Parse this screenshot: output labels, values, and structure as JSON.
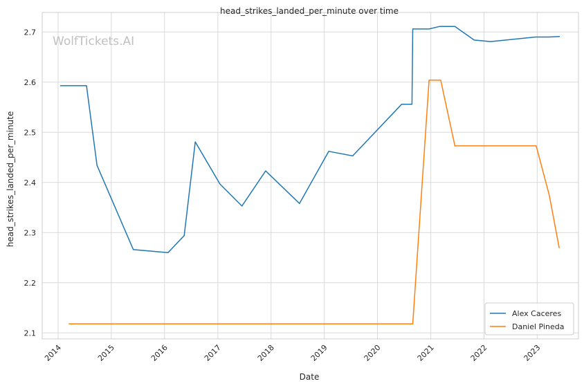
{
  "watermark": "WolfTickets.AI",
  "chart_data": {
    "type": "line",
    "title": "head_strikes_landed_per_minute over time",
    "xlabel": "Date",
    "ylabel": "head_strikes_landed_per_minute",
    "xlim": [
      "2013-09-14",
      "2023-10-11"
    ],
    "ylim": [
      2.088,
      2.739
    ],
    "x_ticks": [
      "2014-01-01",
      "2015-01-01",
      "2016-01-01",
      "2017-01-01",
      "2018-01-01",
      "2019-01-01",
      "2020-01-01",
      "2021-01-01",
      "2022-01-01",
      "2023-01-01"
    ],
    "x_tick_labels": [
      "2014",
      "2015",
      "2016",
      "2017",
      "2018",
      "2019",
      "2020",
      "2021",
      "2022",
      "2023"
    ],
    "y_ticks": [
      2.1,
      2.2,
      2.3,
      2.4,
      2.5,
      2.6,
      2.7
    ],
    "y_tick_labels": [
      "2.1",
      "2.2",
      "2.3",
      "2.4",
      "2.5",
      "2.6",
      "2.7"
    ],
    "grid": true,
    "legend_position": "lower-right",
    "series": [
      {
        "name": "Alex Caceres",
        "color": "#1f77b4",
        "points": [
          [
            "2014-01-15",
            2.593
          ],
          [
            "2014-07-15",
            2.593
          ],
          [
            "2014-09-25",
            2.434
          ],
          [
            "2015-06-01",
            2.266
          ],
          [
            "2016-01-25",
            2.26
          ],
          [
            "2016-05-15",
            2.294
          ],
          [
            "2016-07-30",
            2.481
          ],
          [
            "2017-01-15",
            2.397
          ],
          [
            "2017-06-15",
            2.353
          ],
          [
            "2017-11-25",
            2.423
          ],
          [
            "2018-07-15",
            2.358
          ],
          [
            "2019-02-01",
            2.462
          ],
          [
            "2019-07-15",
            2.453
          ],
          [
            "2020-06-15",
            2.556
          ],
          [
            "2020-08-25",
            2.556
          ],
          [
            "2020-08-30",
            2.706
          ],
          [
            "2020-12-20",
            2.706
          ],
          [
            "2021-03-01",
            2.711
          ],
          [
            "2021-06-15",
            2.711
          ],
          [
            "2021-10-25",
            2.684
          ],
          [
            "2022-02-15",
            2.681
          ],
          [
            "2022-12-20",
            2.69
          ],
          [
            "2023-03-25",
            2.69
          ],
          [
            "2023-06-05",
            2.691
          ]
        ]
      },
      {
        "name": "Daniel Pineda",
        "color": "#ff7f0e",
        "points": [
          [
            "2014-03-15",
            2.118
          ],
          [
            "2020-08-30",
            2.118
          ],
          [
            "2020-12-20",
            2.604
          ],
          [
            "2021-03-10",
            2.604
          ],
          [
            "2021-06-15",
            2.473
          ],
          [
            "2022-12-25",
            2.473
          ],
          [
            "2023-03-25",
            2.374
          ],
          [
            "2023-06-01",
            2.269
          ]
        ]
      }
    ]
  }
}
